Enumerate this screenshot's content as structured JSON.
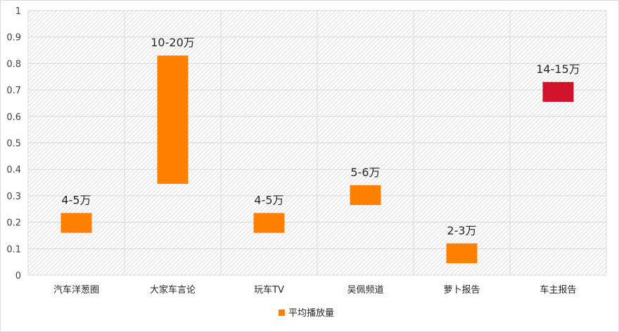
{
  "chart_data": {
    "type": "bar",
    "subtype": "floating",
    "categories": [
      "汽车洋葱圈",
      "大家车言论",
      "玩车TV",
      "吴佩频道",
      "萝卜报告",
      "车主报告"
    ],
    "ranges": [
      [
        0.16,
        0.235
      ],
      [
        0.345,
        0.83
      ],
      [
        0.16,
        0.235
      ],
      [
        0.265,
        0.34
      ],
      [
        0.045,
        0.12
      ],
      [
        0.655,
        0.73
      ]
    ],
    "data_labels": [
      "4-5万",
      "10-20万",
      "4-5万",
      "5-6万",
      "2-3万",
      "14-15万"
    ],
    "colors": [
      "#ff8000",
      "#ff8000",
      "#ff8000",
      "#ff8000",
      "#ff8000",
      "#d0122a"
    ],
    "series": [
      {
        "name": "平均播放量"
      }
    ],
    "ylim": [
      0,
      1
    ],
    "yticks": [
      0,
      0.1,
      0.2,
      0.3,
      0.4,
      0.5,
      0.6,
      0.7,
      0.8,
      0.9,
      1
    ],
    "ytick_labels": [
      "0",
      "0.1",
      "0.2",
      "0.3",
      "0.4",
      "0.5",
      "0.6",
      "0.7",
      "0.8",
      "0.9",
      "1"
    ],
    "grid": true,
    "plot_background": "hatched",
    "legend_position": "bottom",
    "legend_color": "#ff8000"
  }
}
